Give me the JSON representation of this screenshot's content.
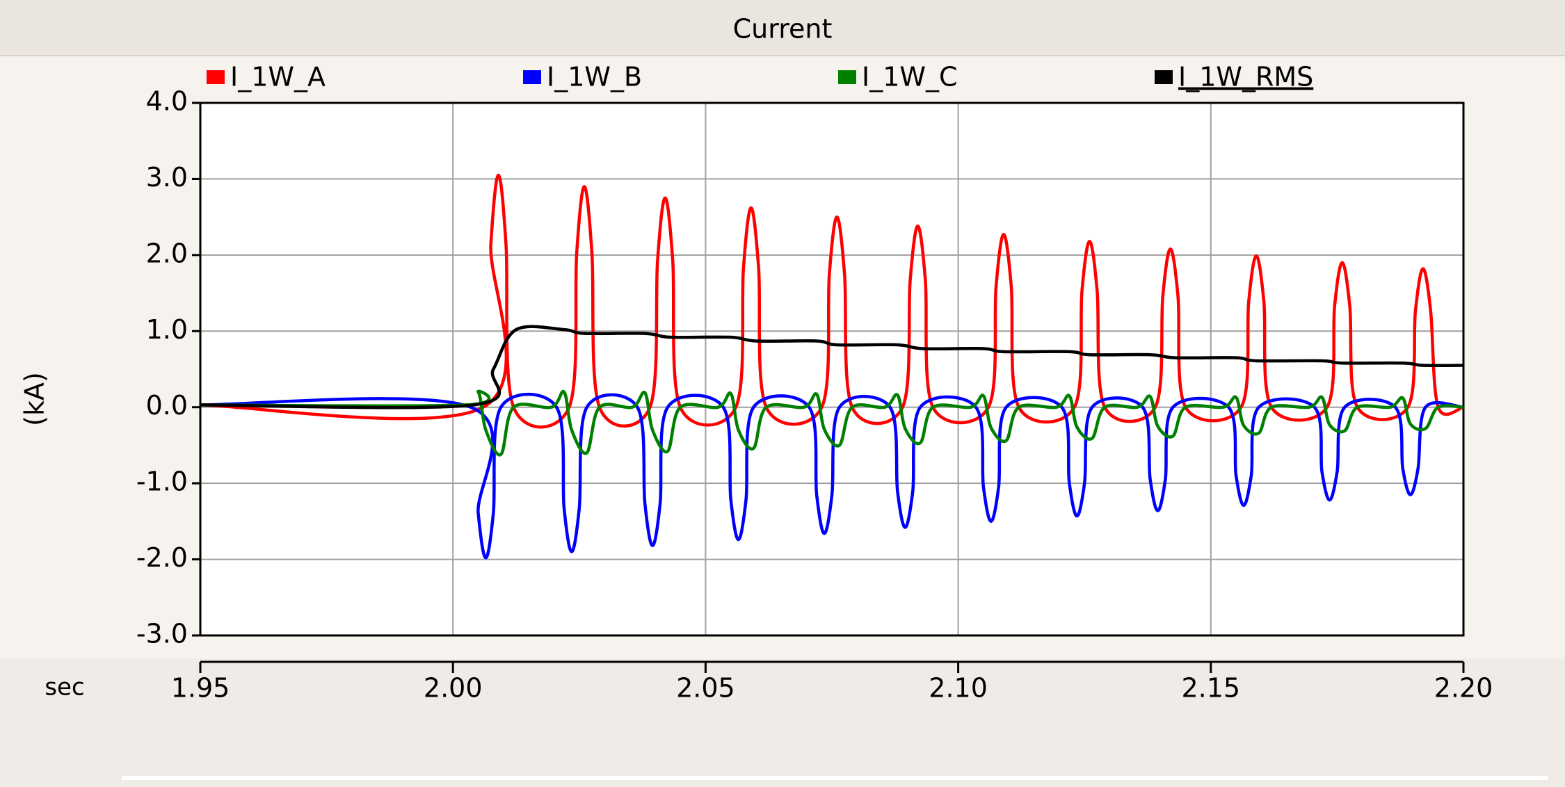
{
  "chart_data": {
    "type": "line",
    "title": "Current",
    "ylabel": "(kA)",
    "xlabel": "sec",
    "xlim": [
      1.95,
      2.2
    ],
    "xticks": [
      1.95,
      {
        "value": 2.0,
        "label": "2.00"
      },
      2.05,
      {
        "value": 2.1,
        "label": "2.10"
      },
      2.15,
      {
        "value": 2.2,
        "label": "2.20"
      }
    ],
    "ylim": [
      -3,
      4
    ],
    "yticks": [
      {
        "value": -3,
        "label": "-3.0"
      },
      {
        "value": -2,
        "label": "-2.0"
      },
      {
        "value": -1,
        "label": "-1.0"
      },
      {
        "value": 0,
        "label": "0.0"
      },
      {
        "value": 1,
        "label": "1.0"
      },
      {
        "value": 2,
        "label": "2.0"
      },
      {
        "value": 3,
        "label": "3.0"
      },
      {
        "value": 4,
        "label": "4.0"
      }
    ],
    "grid": true,
    "series": [
      {
        "name": "I_1W_A",
        "color": "#ff0000",
        "x": [
          1.95,
          2.006,
          2.0075,
          2.009,
          2.0105,
          2.012,
          2.023,
          2.0245,
          2.026,
          2.0275,
          2.029,
          2.039,
          2.0405,
          2.042,
          2.0435,
          2.045,
          2.056,
          2.0575,
          2.059,
          2.0605,
          2.062,
          2.073,
          2.0745,
          2.076,
          2.0775,
          2.079,
          2.089,
          2.0905,
          2.092,
          2.0935,
          2.095,
          2.106,
          2.1075,
          2.109,
          2.1105,
          2.112,
          2.123,
          2.1245,
          2.126,
          2.1275,
          2.129,
          2.139,
          2.1405,
          2.142,
          2.1435,
          2.145,
          2.156,
          2.1575,
          2.159,
          2.1605,
          2.162,
          2.173,
          2.1745,
          2.176,
          2.1775,
          2.179,
          2.189,
          2.1905,
          2.192,
          2.1935,
          2.195,
          2.2
        ],
        "values": [
          0.03,
          0,
          2.14,
          3.05,
          2.14,
          0,
          0,
          2.03,
          2.9,
          2.03,
          0,
          0,
          1.93,
          2.75,
          1.93,
          0,
          0,
          1.83,
          2.62,
          1.83,
          0,
          0,
          1.75,
          2.5,
          1.75,
          0,
          0,
          1.67,
          2.38,
          1.67,
          0,
          0,
          1.59,
          2.27,
          1.59,
          0,
          0,
          1.53,
          2.18,
          1.53,
          0,
          0,
          1.46,
          2.08,
          1.46,
          0,
          0,
          1.39,
          1.99,
          1.39,
          0,
          0,
          1.33,
          1.9,
          1.33,
          0,
          0,
          1.27,
          1.82,
          1.27,
          0,
          0
        ]
      },
      {
        "name": "I_1W_B",
        "color": "#0000ff",
        "x": [
          1.95,
          2.0035,
          2.005,
          2.0065,
          2.008,
          2.0095,
          2.0205,
          2.022,
          2.0235,
          2.025,
          2.0265,
          2.0365,
          2.038,
          2.0395,
          2.041,
          2.0425,
          2.0535,
          2.055,
          2.0565,
          2.058,
          2.0595,
          2.0705,
          2.072,
          2.0735,
          2.075,
          2.0765,
          2.0865,
          2.088,
          2.0895,
          2.091,
          2.0925,
          2.1035,
          2.105,
          2.1065,
          2.108,
          2.1095,
          2.1205,
          2.122,
          2.1235,
          2.125,
          2.1265,
          2.1365,
          2.138,
          2.1395,
          2.141,
          2.1425,
          2.1535,
          2.155,
          2.1565,
          2.158,
          2.1595,
          2.1705,
          2.172,
          2.1735,
          2.175,
          2.1765,
          2.1865,
          2.188,
          2.1895,
          2.191,
          2.1925,
          2.2
        ],
        "values": [
          0.03,
          0,
          -1.39,
          -1.98,
          -1.39,
          0,
          0,
          -1.33,
          -1.9,
          -1.33,
          0,
          0,
          -1.27,
          -1.82,
          -1.27,
          0,
          0,
          -1.22,
          -1.74,
          -1.22,
          0,
          0,
          -1.16,
          -1.66,
          -1.16,
          0,
          0,
          -1.11,
          -1.58,
          -1.11,
          0,
          0,
          -1.05,
          -1.5,
          -1.05,
          0,
          0,
          -1.0,
          -1.43,
          -1.0,
          0,
          0,
          -0.95,
          -1.36,
          -0.95,
          0,
          0,
          -0.9,
          -1.29,
          -0.9,
          0,
          0,
          -0.85,
          -1.22,
          -0.85,
          0,
          0,
          -0.81,
          -1.15,
          -0.81,
          0,
          0
        ]
      },
      {
        "name": "I_1W_C",
        "color": "#008000",
        "x": [
          1.95,
          2.0025,
          2.005,
          2.0065,
          2.0095,
          2.012,
          2.0195,
          2.022,
          2.0235,
          2.0265,
          2.029,
          2.0355,
          2.038,
          2.0395,
          2.0425,
          2.045,
          2.0525,
          2.055,
          2.0565,
          2.0595,
          2.062,
          2.0695,
          2.072,
          2.0735,
          2.0765,
          2.079,
          2.0855,
          2.088,
          2.0895,
          2.0925,
          2.095,
          2.1025,
          2.105,
          2.1065,
          2.1095,
          2.112,
          2.1195,
          2.122,
          2.1235,
          2.1265,
          2.129,
          2.1355,
          2.138,
          2.1395,
          2.1425,
          2.145,
          2.1525,
          2.155,
          2.1565,
          2.1595,
          2.162,
          2.1695,
          2.172,
          2.1735,
          2.1765,
          2.179,
          2.1855,
          2.188,
          2.1895,
          2.1925,
          2.195,
          2.2
        ],
        "values": [
          0.03,
          0.03,
          0.2,
          -0.3,
          -0.62,
          0,
          0,
          0.2,
          -0.3,
          -0.6,
          0,
          0,
          0.19,
          -0.3,
          -0.58,
          0,
          0,
          0.18,
          -0.3,
          -0.54,
          0,
          0,
          0.17,
          -0.29,
          -0.5,
          0,
          0,
          0.16,
          -0.28,
          -0.47,
          0,
          0,
          0.15,
          -0.27,
          -0.44,
          0,
          0,
          0.15,
          -0.26,
          -0.41,
          0,
          0,
          0.14,
          -0.25,
          -0.38,
          0,
          0,
          0.13,
          -0.24,
          -0.34,
          0,
          0,
          0.13,
          -0.23,
          -0.31,
          0,
          0,
          0.12,
          -0.22,
          -0.28,
          0,
          0
        ]
      },
      {
        "name": "I_1W_RMS",
        "color": "#000000",
        "x": [
          1.95,
          2.004,
          2.008,
          2.0125,
          2.022,
          2.026,
          2.038,
          2.043,
          2.055,
          2.06,
          2.072,
          2.076,
          2.088,
          2.093,
          2.105,
          2.109,
          2.122,
          2.126,
          2.138,
          2.143,
          2.155,
          2.159,
          2.172,
          2.176,
          2.188,
          2.192,
          2.2
        ],
        "values": [
          0.03,
          0.03,
          0.5,
          1.02,
          1.02,
          0.97,
          0.97,
          0.92,
          0.92,
          0.87,
          0.87,
          0.82,
          0.82,
          0.77,
          0.77,
          0.73,
          0.73,
          0.69,
          0.69,
          0.65,
          0.65,
          0.61,
          0.61,
          0.58,
          0.58,
          0.55,
          0.55
        ]
      }
    ]
  }
}
